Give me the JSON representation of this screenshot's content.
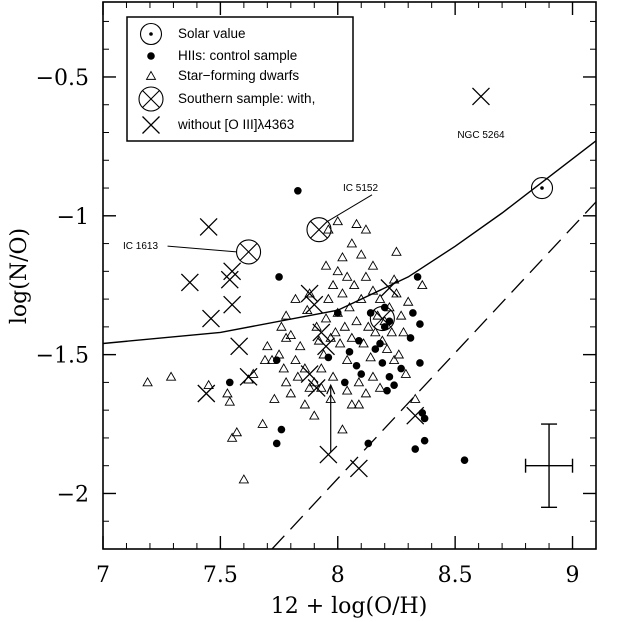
{
  "chart_data": {
    "type": "scatter",
    "xlabel": "12 + log(O/H)",
    "ylabel": "log(N/O)",
    "xlim": [
      7.0,
      9.1
    ],
    "ylim": [
      -2.2,
      -0.23
    ],
    "xticks": [
      7,
      7.5,
      8,
      8.5,
      9
    ],
    "xtick_labels": [
      "7",
      "7.5",
      "8",
      "8.5",
      "9"
    ],
    "yticks": [
      -2,
      -1.5,
      -1,
      -0.5
    ],
    "ytick_labels": [
      "−2",
      "−1.5",
      "−1",
      "−0.5"
    ],
    "grid": false,
    "legend_position": "top-left",
    "legend": [
      {
        "label": "Solar value",
        "marker": "circle-dot"
      },
      {
        "label": "HIIs: control sample",
        "marker": "filled-circle"
      },
      {
        "label": "Star−forming dwarfs",
        "marker": "open-triangle"
      },
      {
        "label": "Southern sample: with,",
        "marker": "circle-cross"
      },
      {
        "label": "without [O III]λ4363",
        "marker": "cross"
      }
    ],
    "series": [
      {
        "name": "Solar value",
        "marker": "circle-dot",
        "points": [
          [
            8.87,
            -0.9
          ]
        ]
      },
      {
        "name": "HIIs: control sample",
        "marker": "filled-circle",
        "points": [
          [
            7.83,
            -0.91
          ],
          [
            7.75,
            -1.22
          ],
          [
            7.74,
            -1.52
          ],
          [
            7.74,
            -1.82
          ],
          [
            7.76,
            -1.77
          ],
          [
            7.54,
            -1.6
          ],
          [
            8.14,
            -1.35
          ],
          [
            8.2,
            -1.4
          ],
          [
            8.19,
            -1.53
          ],
          [
            8.21,
            -1.63
          ],
          [
            8.31,
            -1.44
          ],
          [
            8.35,
            -1.39
          ],
          [
            8.32,
            -1.35
          ],
          [
            8.34,
            -1.22
          ],
          [
            8.35,
            -1.53
          ],
          [
            8.36,
            -1.71
          ],
          [
            8.37,
            -1.73
          ],
          [
            8.37,
            -1.81
          ],
          [
            8.33,
            -1.84
          ],
          [
            8.54,
            -1.88
          ],
          [
            8.2,
            -1.33
          ],
          [
            8.18,
            -1.46
          ],
          [
            8.22,
            -1.58
          ],
          [
            8.27,
            -1.55
          ],
          [
            8.24,
            -1.61
          ],
          [
            8.13,
            -1.82
          ],
          [
            8.16,
            -1.48
          ],
          [
            8.22,
            -1.38
          ],
          [
            8.09,
            -1.45
          ],
          [
            8.05,
            -1.49
          ],
          [
            8.0,
            -1.35
          ],
          [
            8.1,
            -1.57
          ],
          [
            8.08,
            -1.54
          ],
          [
            7.96,
            -1.51
          ],
          [
            8.03,
            -1.6
          ]
        ]
      },
      {
        "name": "Star−forming dwarfs",
        "marker": "open-triangle",
        "points": [
          [
            7.19,
            -1.6
          ],
          [
            7.29,
            -1.58
          ],
          [
            7.45,
            -1.61
          ],
          [
            7.53,
            -1.64
          ],
          [
            7.54,
            -1.67
          ],
          [
            7.55,
            -1.8
          ],
          [
            7.57,
            -1.78
          ],
          [
            7.6,
            -1.95
          ],
          [
            7.62,
            -1.59
          ],
          [
            7.64,
            -1.57
          ],
          [
            7.7,
            -1.47
          ],
          [
            7.72,
            -1.52
          ],
          [
            7.75,
            -1.5
          ],
          [
            7.77,
            -1.55
          ],
          [
            7.78,
            -1.6
          ],
          [
            7.78,
            -1.36
          ],
          [
            7.8,
            -1.43
          ],
          [
            7.82,
            -1.52
          ],
          [
            7.84,
            -1.47
          ],
          [
            7.86,
            -1.55
          ],
          [
            7.87,
            -1.34
          ],
          [
            7.88,
            -1.62
          ],
          [
            7.9,
            -1.6
          ],
          [
            7.91,
            -1.4
          ],
          [
            7.92,
            -1.45
          ],
          [
            7.93,
            -1.55
          ],
          [
            7.94,
            -1.5
          ],
          [
            7.95,
            -1.37
          ],
          [
            7.96,
            -1.3
          ],
          [
            7.97,
            -1.44
          ],
          [
            7.98,
            -1.58
          ],
          [
            7.99,
            -1.42
          ],
          [
            8.0,
            -1.35
          ],
          [
            8.01,
            -1.46
          ],
          [
            8.02,
            -1.28
          ],
          [
            8.03,
            -1.4
          ],
          [
            8.04,
            -1.52
          ],
          [
            8.05,
            -1.33
          ],
          [
            8.06,
            -1.44
          ],
          [
            8.07,
            -1.25
          ],
          [
            8.08,
            -1.38
          ],
          [
            8.09,
            -1.6
          ],
          [
            8.1,
            -1.3
          ],
          [
            8.11,
            -1.46
          ],
          [
            8.12,
            -1.22
          ],
          [
            8.13,
            -1.4
          ],
          [
            8.14,
            -1.51
          ],
          [
            8.15,
            -1.27
          ],
          [
            8.16,
            -1.42
          ],
          [
            8.17,
            -1.36
          ],
          [
            8.18,
            -1.3
          ],
          [
            8.19,
            -1.45
          ],
          [
            8.2,
            -1.38
          ],
          [
            8.21,
            -1.48
          ],
          [
            8.22,
            -1.33
          ],
          [
            8.23,
            -1.42
          ],
          [
            8.24,
            -1.52
          ],
          [
            8.25,
            -1.28
          ],
          [
            8.27,
            -1.36
          ],
          [
            8.3,
            -1.31
          ],
          [
            8.33,
            -1.66
          ],
          [
            8.36,
            -1.25
          ],
          [
            7.96,
            -1.05
          ],
          [
            8.0,
            -1.02
          ],
          [
            8.08,
            -1.03
          ],
          [
            8.12,
            -1.05
          ],
          [
            8.06,
            -1.1
          ],
          [
            8.02,
            -1.15
          ],
          [
            8.1,
            -1.14
          ],
          [
            8.15,
            -1.18
          ],
          [
            8.24,
            -1.23
          ],
          [
            8.25,
            -1.13
          ],
          [
            7.95,
            -1.18
          ],
          [
            8.0,
            -1.2
          ],
          [
            8.04,
            -1.22
          ],
          [
            7.82,
            -1.3
          ],
          [
            7.78,
            -1.44
          ],
          [
            7.88,
            -1.28
          ],
          [
            7.98,
            -1.25
          ],
          [
            8.06,
            -1.68
          ],
          [
            8.02,
            -1.77
          ],
          [
            8.12,
            -1.64
          ],
          [
            7.86,
            -1.68
          ],
          [
            7.9,
            -1.72
          ],
          [
            7.68,
            -1.75
          ],
          [
            7.73,
            -1.66
          ],
          [
            7.8,
            -1.64
          ],
          [
            7.83,
            -1.58
          ],
          [
            7.69,
            -1.52
          ],
          [
            7.76,
            -1.4
          ],
          [
            7.93,
            -1.62
          ],
          [
            7.97,
            -1.66
          ],
          [
            8.04,
            -1.63
          ],
          [
            8.09,
            -1.68
          ],
          [
            8.15,
            -1.58
          ],
          [
            8.18,
            -1.62
          ],
          [
            8.26,
            -1.5
          ],
          [
            8.28,
            -1.42
          ],
          [
            8.29,
            -1.57
          ]
        ]
      },
      {
        "name": "Southern sample: with,",
        "marker": "circle-cross",
        "points": [
          [
            7.92,
            -1.05
          ],
          [
            7.62,
            -1.13
          ],
          [
            8.19,
            -1.37
          ]
        ]
      },
      {
        "name": "without [O III]λ4363",
        "marker": "cross",
        "points": [
          [
            8.61,
            -0.57
          ],
          [
            7.45,
            -1.04
          ],
          [
            7.37,
            -1.24
          ],
          [
            7.46,
            -1.37
          ],
          [
            7.44,
            -1.64
          ],
          [
            7.55,
            -1.2
          ],
          [
            7.54,
            -1.23
          ],
          [
            7.55,
            -1.32
          ],
          [
            7.58,
            -1.47
          ],
          [
            7.62,
            -1.58
          ],
          [
            7.88,
            -1.28
          ],
          [
            7.9,
            -1.32
          ],
          [
            7.93,
            -1.42
          ],
          [
            7.88,
            -1.57
          ],
          [
            7.91,
            -1.62
          ],
          [
            7.96,
            -1.86
          ],
          [
            8.09,
            -1.91
          ],
          [
            8.22,
            -1.26
          ],
          [
            8.33,
            -1.72
          ],
          [
            7.95,
            -1.47
          ]
        ]
      }
    ],
    "curve": {
      "style": "solid",
      "x": [
        7.0,
        7.5,
        8.0,
        8.3,
        8.5,
        8.7,
        8.9,
        9.1
      ],
      "y": [
        -1.46,
        -1.42,
        -1.34,
        -1.22,
        -1.11,
        -0.99,
        -0.86,
        -0.73
      ]
    },
    "dashed_line": {
      "style": "dashed",
      "x": [
        7.72,
        9.1
      ],
      "y": [
        -2.2,
        -0.95
      ]
    },
    "upper_limit_arrow": {
      "x": 7.97,
      "y_from": -1.85,
      "y_to": -1.61
    },
    "error_bar": {
      "x": 8.9,
      "y": -1.9,
      "dx": 0.1,
      "dy": 0.15
    },
    "annotations": [
      {
        "text": "NGC 5264",
        "x": 8.61,
        "y": -0.72
      },
      {
        "text": "IC 5152",
        "x": 8.18,
        "y": -0.91
      },
      {
        "text": "IC 1613",
        "x": 7.16,
        "y": -1.12
      }
    ]
  }
}
